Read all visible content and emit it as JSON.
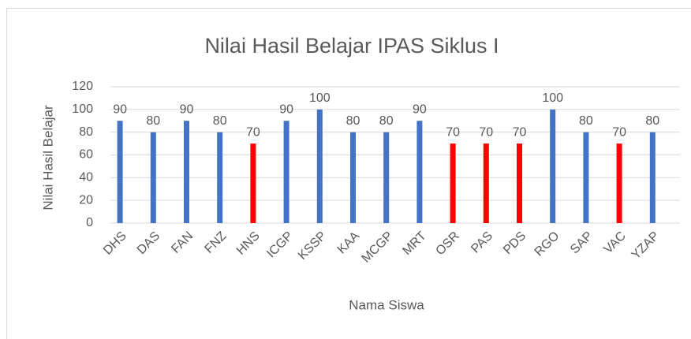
{
  "chart_data": {
    "type": "bar",
    "title": "Nilai Hasil Belajar IPAS Siklus I",
    "x_label": "Nama Siswa",
    "y_label": "Nilai Hasil Belajar",
    "categories": [
      "DHS",
      "DAS",
      "FAN",
      "FNZ",
      "HNS",
      "ICGP",
      "KSSP",
      "KAA",
      "MCGP",
      "MRT",
      "OSR",
      "PAS",
      "PDS",
      "RGO",
      "SAP",
      "VAC",
      "YZAP"
    ],
    "values": [
      90,
      80,
      90,
      80,
      70,
      90,
      100,
      80,
      80,
      90,
      70,
      70,
      70,
      100,
      80,
      70,
      80
    ],
    "colors": [
      "#4472c4",
      "#4472c4",
      "#4472c4",
      "#4472c4",
      "#ff0000",
      "#4472c4",
      "#4472c4",
      "#4472c4",
      "#4472c4",
      "#4472c4",
      "#ff0000",
      "#ff0000",
      "#ff0000",
      "#4472c4",
      "#4472c4",
      "#ff0000",
      "#4472c4"
    ],
    "ylim": [
      0,
      120
    ],
    "yticks": [
      0,
      20,
      40,
      60,
      80,
      100,
      120
    ],
    "grid": true
  }
}
